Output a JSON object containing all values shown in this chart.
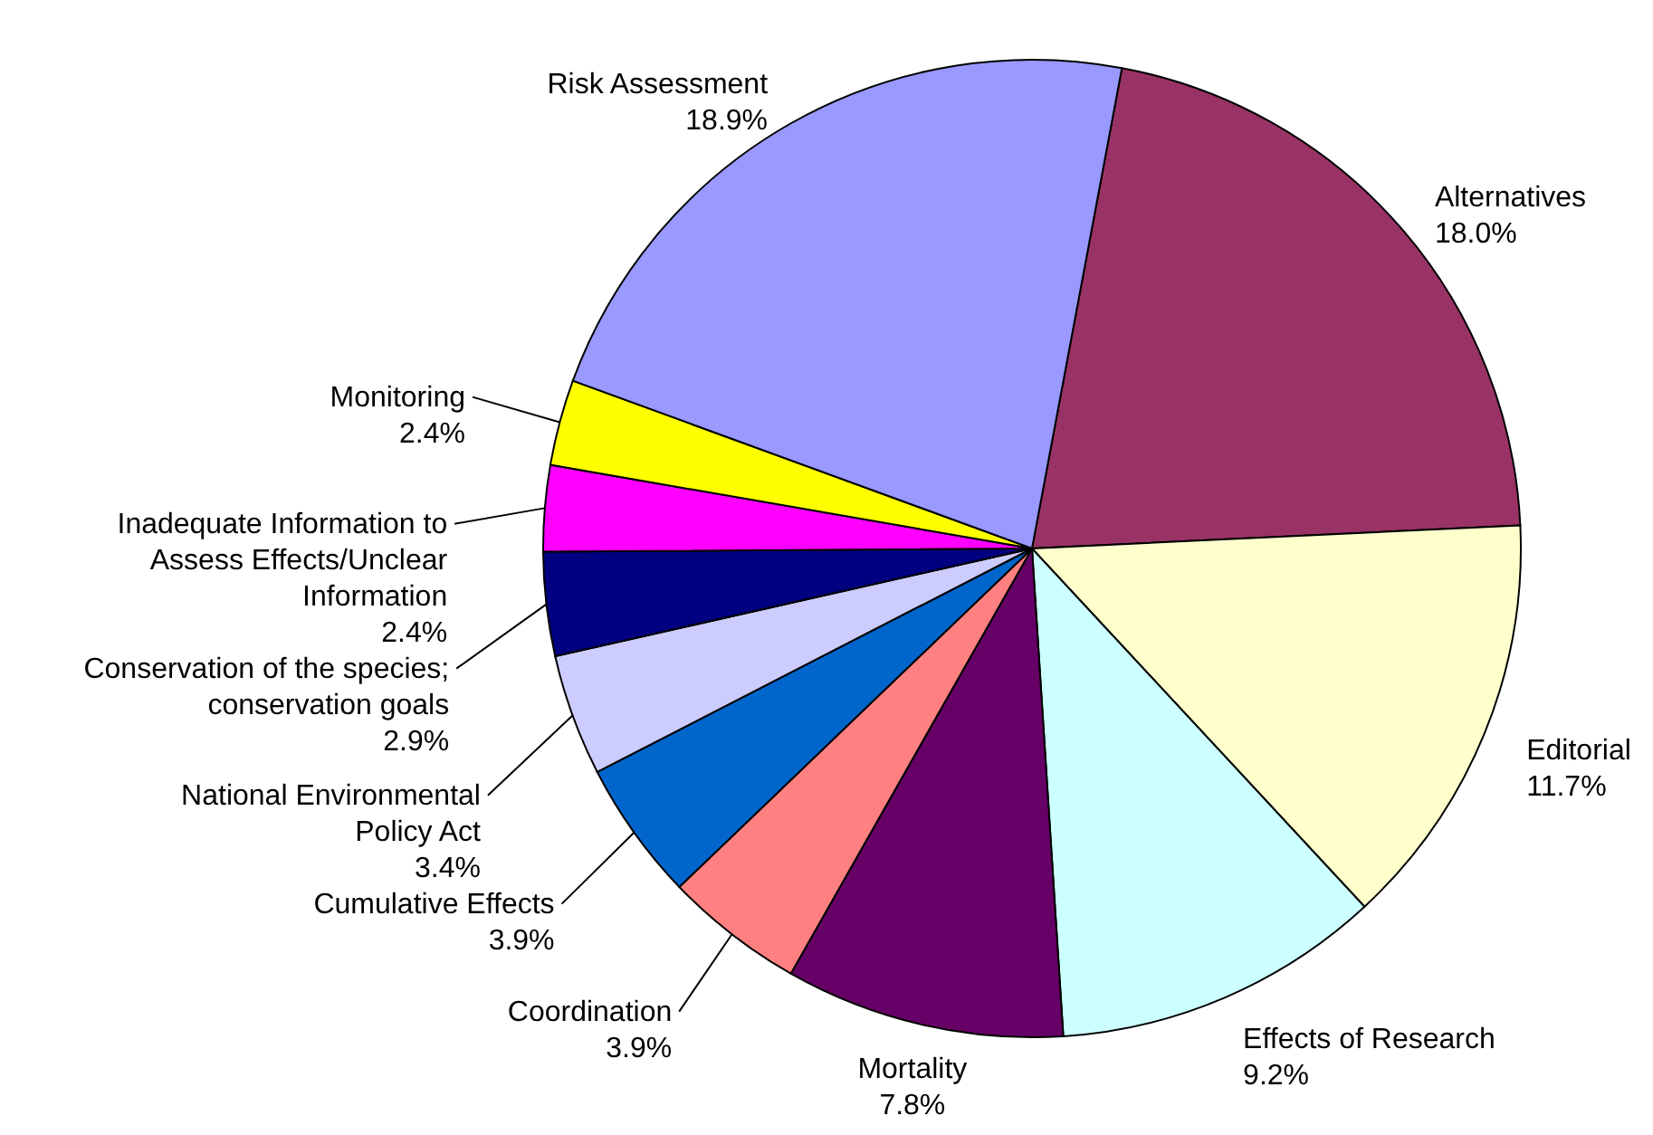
{
  "chart_data": {
    "type": "pie",
    "categories": [
      "Alternatives",
      "Editorial",
      "Effects of Research",
      "Mortality",
      "Coordination",
      "Cumulative Effects",
      "National Environmental Policy Act",
      "Conservation of the species; conservation goals",
      "Inadequate Information to Assess Effects/Unclear Information",
      "Monitoring",
      "Risk Assessment"
    ],
    "values": [
      18.0,
      11.7,
      9.2,
      7.8,
      3.9,
      3.9,
      3.4,
      2.9,
      2.4,
      2.4,
      18.9
    ],
    "value_labels": [
      "18.0%",
      "11.7%",
      "9.2%",
      "7.8%",
      "3.9%",
      "3.9%",
      "3.4%",
      "2.9%",
      "2.4%",
      "2.4%",
      "18.9%"
    ],
    "colors": [
      "#993366",
      "#ffffcc",
      "#ccffff",
      "#660066",
      "#ff8080",
      "#0066cc",
      "#ccccff",
      "#000080",
      "#ff00ff",
      "#ffff00",
      "#9999ff"
    ]
  }
}
